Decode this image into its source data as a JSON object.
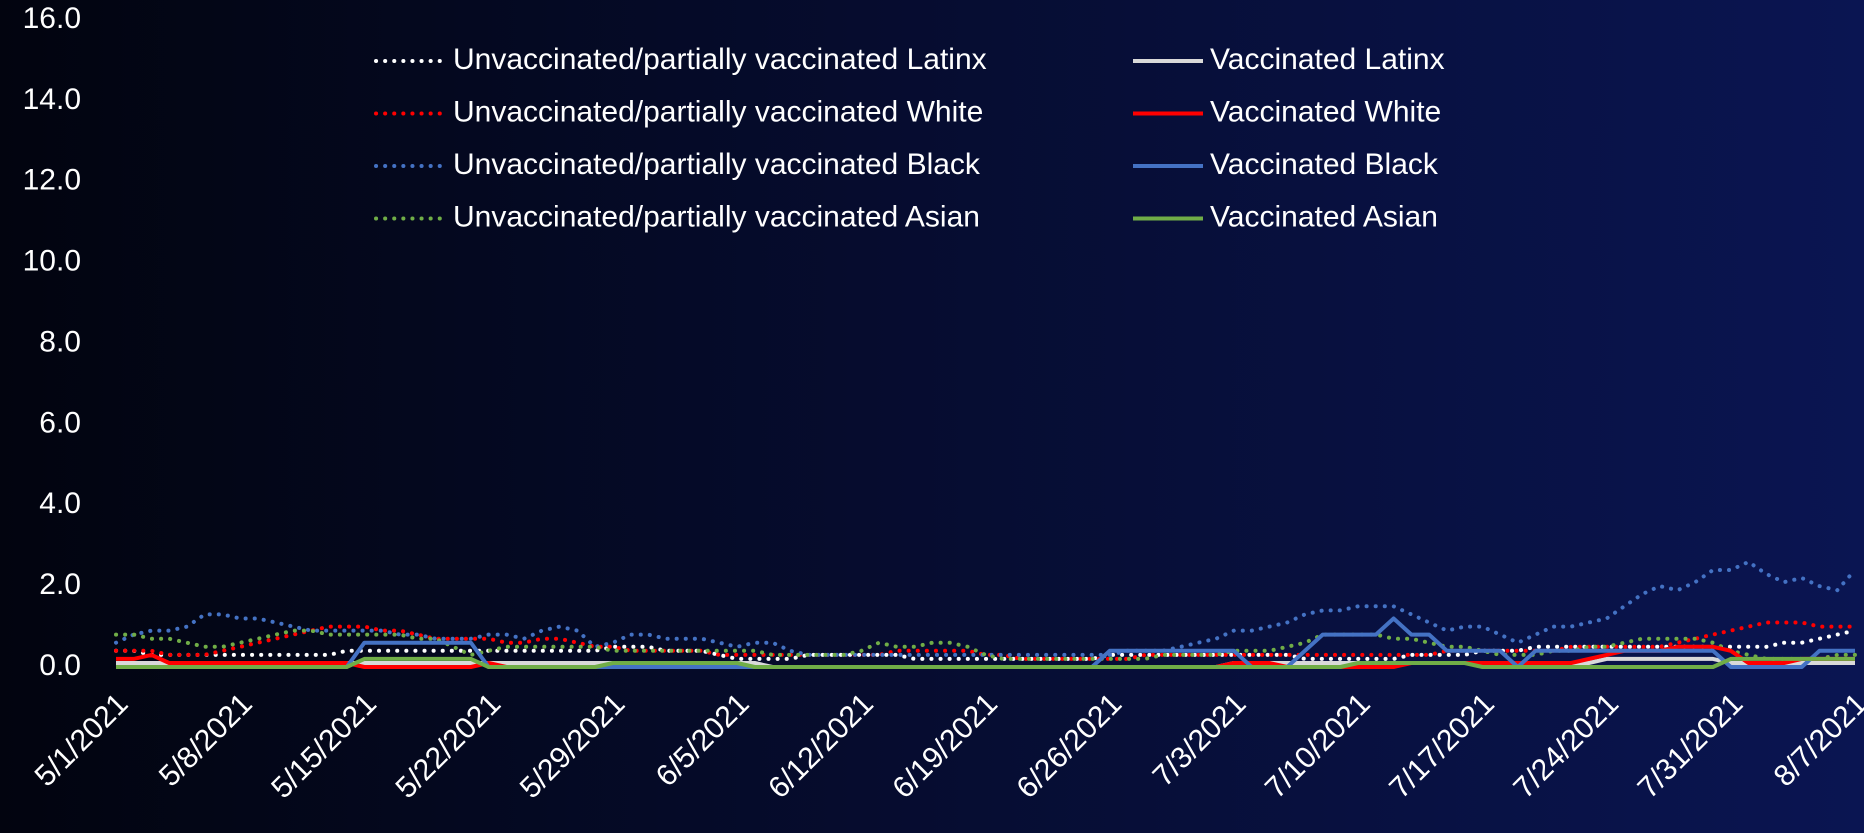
{
  "chart_data": {
    "type": "line",
    "categories": [
      "5/1/2021",
      null,
      null,
      null,
      null,
      null,
      null,
      "5/8/2021",
      null,
      null,
      null,
      null,
      null,
      null,
      "5/15/2021",
      null,
      null,
      null,
      null,
      null,
      null,
      "5/22/2021",
      null,
      null,
      null,
      null,
      null,
      null,
      "5/29/2021",
      null,
      null,
      null,
      null,
      null,
      null,
      "6/5/2021",
      null,
      null,
      null,
      null,
      null,
      null,
      "6/12/2021",
      null,
      null,
      null,
      null,
      null,
      null,
      "6/19/2021",
      null,
      null,
      null,
      null,
      null,
      null,
      "6/26/2021",
      null,
      null,
      null,
      null,
      null,
      null,
      "7/3/2021",
      null,
      null,
      null,
      null,
      null,
      null,
      "7/10/2021",
      null,
      null,
      null,
      null,
      null,
      null,
      "7/17/2021",
      null,
      null,
      null,
      null,
      null,
      null,
      "7/24/2021",
      null,
      null,
      null,
      null,
      null,
      null,
      "7/31/2021",
      null,
      null,
      null,
      null,
      null,
      null,
      "8/7/2021"
    ],
    "ylim": [
      0,
      16
    ],
    "yticks": [
      {
        "value": 0,
        "label": "0.0"
      },
      {
        "value": 2,
        "label": "2.0"
      },
      {
        "value": 4,
        "label": "4.0"
      },
      {
        "value": 6,
        "label": "6.0"
      },
      {
        "value": 8,
        "label": "8.0"
      },
      {
        "value": 10,
        "label": "10.0"
      },
      {
        "value": 12,
        "label": "12.0"
      },
      {
        "value": 14,
        "label": "14.0"
      },
      {
        "value": 16,
        "label": "16.0"
      }
    ],
    "grid": false,
    "legend": "top",
    "series": [
      {
        "name": "Unvaccinated/partially vaccinated Latinx",
        "color": "#ffffff",
        "style": "dotted",
        "values": [
          0.4,
          0.4,
          0.3,
          0.3,
          0.3,
          0.3,
          0.3,
          0.3,
          0.3,
          0.3,
          0.3,
          0.3,
          0.3,
          0.4,
          0.4,
          0.4,
          0.4,
          0.4,
          0.4,
          0.4,
          0.4,
          0.4,
          0.4,
          0.4,
          0.4,
          0.4,
          0.4,
          0.4,
          0.5,
          0.5,
          0.5,
          0.4,
          0.4,
          0.4,
          0.3,
          0.2,
          0.2,
          0.2,
          0.2,
          0.3,
          0.3,
          0.3,
          0.3,
          0.3,
          0.3,
          0.2,
          0.2,
          0.2,
          0.2,
          0.2,
          0.2,
          0.2,
          0.2,
          0.2,
          0.2,
          0.2,
          0.3,
          0.3,
          0.3,
          0.3,
          0.3,
          0.3,
          0.3,
          0.3,
          0.3,
          0.3,
          0.3,
          0.2,
          0.2,
          0.2,
          0.2,
          0.2,
          0.2,
          0.3,
          0.3,
          0.3,
          0.3,
          0.4,
          0.4,
          0.4,
          0.5,
          0.5,
          0.5,
          0.5,
          0.5,
          0.5,
          0.5,
          0.5,
          0.5,
          0.5,
          0.5,
          0.5,
          0.5,
          0.5,
          0.6,
          0.6,
          0.7,
          0.8,
          0.9
        ]
      },
      {
        "name": "Unvaccinated/partially vaccinated White",
        "color": "#ff0000",
        "style": "dotted",
        "values": [
          0.4,
          0.4,
          0.4,
          0.3,
          0.3,
          0.3,
          0.4,
          0.5,
          0.6,
          0.7,
          0.8,
          0.9,
          1.0,
          1.0,
          1.0,
          0.9,
          0.9,
          0.8,
          0.7,
          0.7,
          0.7,
          0.7,
          0.6,
          0.6,
          0.7,
          0.7,
          0.6,
          0.5,
          0.5,
          0.4,
          0.4,
          0.4,
          0.4,
          0.4,
          0.3,
          0.3,
          0.3,
          0.3,
          0.3,
          0.3,
          0.3,
          0.3,
          0.3,
          0.3,
          0.4,
          0.4,
          0.4,
          0.4,
          0.4,
          0.3,
          0.3,
          0.2,
          0.2,
          0.2,
          0.2,
          0.2,
          0.2,
          0.2,
          0.3,
          0.3,
          0.3,
          0.3,
          0.3,
          0.3,
          0.3,
          0.3,
          0.3,
          0.3,
          0.3,
          0.3,
          0.3,
          0.3,
          0.3,
          0.3,
          0.3,
          0.4,
          0.4,
          0.4,
          0.4,
          0.4,
          0.4,
          0.4,
          0.5,
          0.5,
          0.5,
          0.5,
          0.5,
          0.5,
          0.6,
          0.7,
          0.8,
          0.9,
          1.0,
          1.1,
          1.1,
          1.1,
          1.0,
          1.0,
          1.0
        ]
      },
      {
        "name": "Unvaccinated/partially vaccinated Black",
        "color": "#4472c4",
        "style": "dotted",
        "values": [
          0.6,
          0.8,
          0.9,
          0.9,
          1.0,
          1.3,
          1.3,
          1.2,
          1.2,
          1.1,
          1.0,
          0.9,
          0.9,
          0.9,
          0.9,
          0.9,
          0.8,
          0.8,
          0.7,
          0.7,
          0.7,
          0.8,
          0.8,
          0.7,
          0.9,
          1.0,
          0.9,
          0.5,
          0.6,
          0.8,
          0.8,
          0.7,
          0.7,
          0.7,
          0.6,
          0.5,
          0.6,
          0.6,
          0.4,
          0.3,
          0.3,
          0.3,
          0.3,
          0.3,
          0.3,
          0.3,
          0.3,
          0.3,
          0.3,
          0.3,
          0.3,
          0.3,
          0.3,
          0.3,
          0.3,
          0.3,
          0.3,
          0.4,
          0.4,
          0.4,
          0.5,
          0.6,
          0.7,
          0.9,
          0.9,
          1.0,
          1.1,
          1.3,
          1.4,
          1.4,
          1.5,
          1.5,
          1.5,
          1.3,
          1.1,
          0.9,
          1.0,
          1.0,
          0.8,
          0.6,
          0.8,
          1.0,
          1.0,
          1.1,
          1.2,
          1.5,
          1.8,
          2.0,
          1.9,
          2.1,
          2.4,
          2.4,
          2.6,
          2.3,
          2.1,
          2.2,
          2.0,
          1.9,
          2.4
        ]
      },
      {
        "name": "Unvaccinated/partially vaccinated Asian",
        "color": "#70ad47",
        "style": "dotted",
        "values": [
          0.8,
          0.8,
          0.7,
          0.7,
          0.6,
          0.5,
          0.5,
          0.6,
          0.7,
          0.8,
          0.9,
          0.9,
          0.8,
          0.8,
          0.8,
          0.8,
          0.8,
          0.7,
          0.7,
          0.5,
          0.3,
          0.4,
          0.5,
          0.5,
          0.5,
          0.5,
          0.5,
          0.5,
          0.4,
          0.4,
          0.4,
          0.4,
          0.4,
          0.4,
          0.4,
          0.4,
          0.4,
          0.3,
          0.3,
          0.3,
          0.3,
          0.3,
          0.4,
          0.6,
          0.5,
          0.5,
          0.6,
          0.6,
          0.5,
          0.3,
          0.2,
          0.2,
          0.2,
          0.2,
          0.2,
          0.2,
          0.2,
          0.2,
          0.2,
          0.3,
          0.3,
          0.3,
          0.3,
          0.4,
          0.4,
          0.4,
          0.5,
          0.6,
          0.8,
          0.8,
          0.8,
          0.8,
          0.7,
          0.7,
          0.6,
          0.5,
          0.5,
          0.4,
          0.3,
          0.3,
          0.3,
          0.4,
          0.4,
          0.5,
          0.5,
          0.6,
          0.7,
          0.7,
          0.7,
          0.7,
          0.6,
          0.4,
          0.3,
          0.2,
          0.2,
          0.2,
          0.2,
          0.3,
          0.3
        ]
      },
      {
        "name": "Vaccinated Latinx",
        "color": "#d9d9d9",
        "style": "solid",
        "values": [
          0.1,
          0.1,
          0.1,
          0.1,
          0.1,
          0.1,
          0.1,
          0.1,
          0.1,
          0.1,
          0.1,
          0.1,
          0.1,
          0.1,
          0.1,
          0.1,
          0.1,
          0.1,
          0.1,
          0.1,
          0.1,
          0.1,
          0.1,
          0.1,
          0.1,
          0.1,
          0.1,
          0.1,
          0.1,
          0.1,
          0.1,
          0.1,
          0.1,
          0.1,
          0.1,
          0.1,
          0.1,
          0,
          0,
          0,
          0,
          0,
          0,
          0,
          0,
          0,
          0,
          0,
          0,
          0,
          0,
          0,
          0,
          0,
          0,
          0,
          0,
          0,
          0,
          0,
          0,
          0,
          0,
          0.1,
          0.1,
          0.1,
          0.1,
          0.1,
          0.1,
          0.1,
          0.1,
          0.1,
          0.1,
          0.1,
          0.1,
          0.1,
          0.1,
          0.1,
          0.1,
          0.1,
          0.1,
          0.1,
          0.1,
          0.1,
          0.2,
          0.2,
          0.2,
          0.2,
          0.2,
          0.2,
          0.2,
          0.1,
          0.1,
          0.1,
          0.1,
          0.1,
          0.1,
          0.1,
          0.1
        ]
      },
      {
        "name": "Vaccinated White",
        "color": "#ff0000",
        "style": "solid",
        "values": [
          0.2,
          0.2,
          0.3,
          0.1,
          0.1,
          0.1,
          0.1,
          0.1,
          0.1,
          0.1,
          0.1,
          0.1,
          0.1,
          0.1,
          0,
          0,
          0,
          0,
          0,
          0,
          0,
          0.1,
          0,
          0,
          0,
          0,
          0,
          0,
          0,
          0,
          0,
          0,
          0,
          0,
          0,
          0,
          0,
          0,
          0,
          0,
          0,
          0,
          0,
          0,
          0,
          0,
          0,
          0,
          0,
          0,
          0,
          0,
          0,
          0,
          0,
          0,
          0,
          0,
          0,
          0,
          0,
          0,
          0,
          0.1,
          0.1,
          0.1,
          0,
          0,
          0,
          0,
          0,
          0,
          0,
          0.1,
          0.1,
          0.1,
          0.1,
          0.1,
          0.1,
          0.1,
          0.1,
          0.1,
          0.1,
          0.2,
          0.3,
          0.4,
          0.4,
          0.4,
          0.5,
          0.5,
          0.5,
          0.4,
          0.1,
          0.1,
          0.1,
          0.2,
          0.2,
          0.2,
          0.2
        ]
      },
      {
        "name": "Vaccinated Black",
        "color": "#4472c4",
        "style": "solid",
        "values": [
          0,
          0,
          0,
          0,
          0,
          0,
          0,
          0,
          0,
          0,
          0,
          0,
          0,
          0,
          0.6,
          0.6,
          0.6,
          0.6,
          0.6,
          0.6,
          0.6,
          0,
          0,
          0,
          0,
          0,
          0,
          0,
          0,
          0,
          0,
          0,
          0,
          0,
          0,
          0,
          0,
          0,
          0,
          0,
          0,
          0,
          0,
          0,
          0,
          0,
          0,
          0,
          0,
          0,
          0,
          0,
          0,
          0,
          0,
          0,
          0.4,
          0.4,
          0.4,
          0.4,
          0.4,
          0.4,
          0.4,
          0.4,
          0,
          0,
          0,
          0.4,
          0.8,
          0.8,
          0.8,
          0.8,
          1.2,
          0.8,
          0.8,
          0.4,
          0.4,
          0.4,
          0.4,
          0,
          0.4,
          0.4,
          0.4,
          0.4,
          0.4,
          0.4,
          0.4,
          0.4,
          0.4,
          0.4,
          0.4,
          0,
          0,
          0,
          0,
          0,
          0.4,
          0.4,
          0.4
        ]
      },
      {
        "name": "Vaccinated Asian",
        "color": "#70ad47",
        "style": "solid",
        "values": [
          0,
          0,
          0,
          0,
          0,
          0,
          0,
          0,
          0,
          0,
          0,
          0,
          0,
          0,
          0.2,
          0.2,
          0.2,
          0.2,
          0.2,
          0.2,
          0.2,
          0,
          0,
          0,
          0,
          0,
          0,
          0,
          0.1,
          0.1,
          0.1,
          0.1,
          0.1,
          0.1,
          0.1,
          0.1,
          0,
          0,
          0,
          0,
          0,
          0,
          0,
          0,
          0,
          0,
          0,
          0,
          0,
          0,
          0,
          0,
          0,
          0,
          0,
          0,
          0,
          0,
          0,
          0,
          0,
          0,
          0,
          0,
          0,
          0,
          0,
          0,
          0,
          0,
          0.1,
          0.1,
          0.1,
          0.1,
          0.1,
          0.1,
          0.1,
          0,
          0,
          0,
          0,
          0,
          0,
          0,
          0,
          0,
          0,
          0,
          0,
          0,
          0,
          0.2,
          0.2,
          0.2,
          0.2,
          0.2,
          0.2,
          0.2,
          0.2
        ]
      }
    ]
  }
}
